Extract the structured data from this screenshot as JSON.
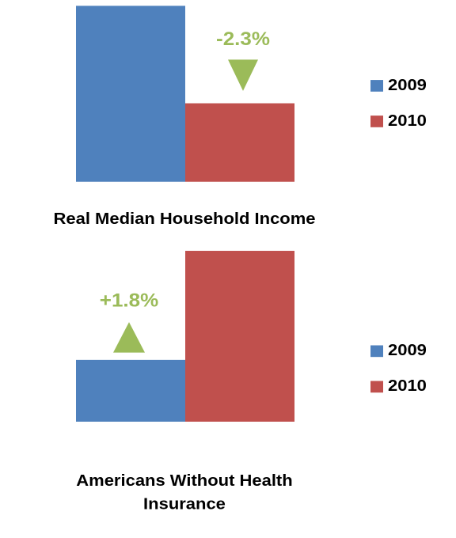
{
  "chart_data": [
    {
      "type": "bar",
      "title": "Real Median Household Income",
      "series": [
        {
          "name": "2009",
          "color": "#4f81bd",
          "values": [
            50599
          ]
        },
        {
          "name": "2010",
          "color": "#c0504d",
          "values": [
            49445
          ]
        }
      ],
      "ylim": [
        48516,
        50599
      ],
      "annotation": {
        "text": "-2.3%",
        "direction": "down",
        "color": "#9bbb59"
      },
      "legend": "right"
    },
    {
      "type": "bar",
      "title": "Americans Without Health Insurance",
      "series": [
        {
          "name": "2009",
          "color": "#4f81bd",
          "values": [
            49.0
          ]
        },
        {
          "name": "2010",
          "color": "#c0504d",
          "values": [
            49.9
          ]
        }
      ],
      "ylim": [
        48.49,
        49.9
      ],
      "annotation": {
        "text": "+1.8%",
        "direction": "up",
        "color": "#9bbb59"
      },
      "legend": "right"
    }
  ]
}
